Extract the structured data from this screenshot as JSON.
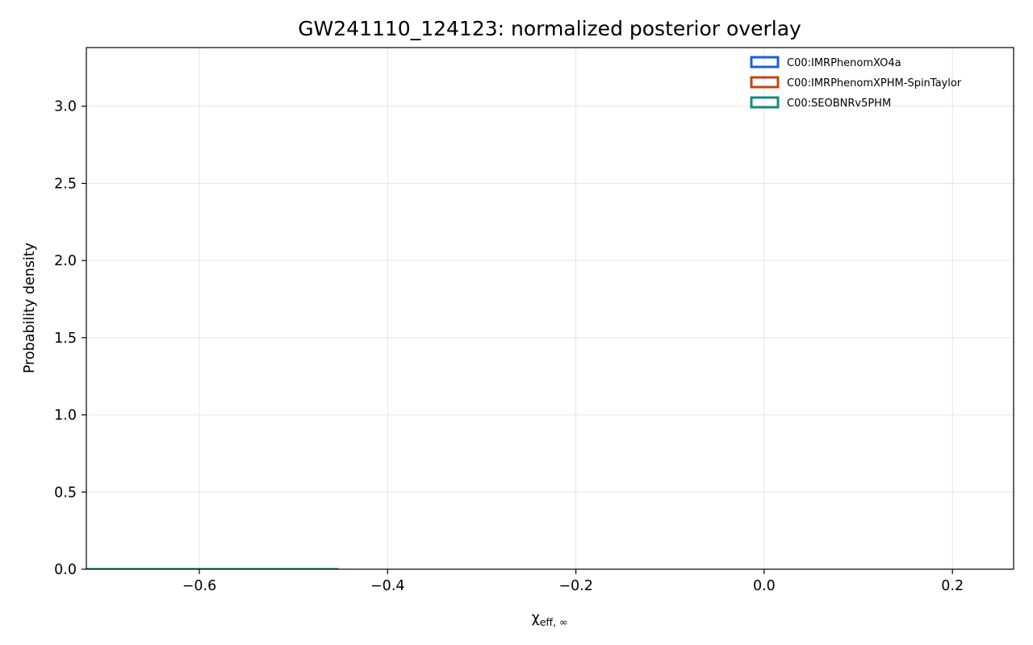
{
  "chart_data": {
    "type": "histogram",
    "title": "GW241110_124123: normalized posterior overlay",
    "xlabel_symbol": "χ",
    "xlabel_sub": "eff, ∞",
    "ylabel": "Probability density",
    "xlim": [
      -0.72,
      0.265
    ],
    "ylim": [
      0.0,
      3.38
    ],
    "xticks": [
      -0.6,
      -0.4,
      -0.2,
      0.0,
      0.2
    ],
    "xtick_labels": [
      "−0.6",
      "−0.4",
      "−0.2",
      "0.0",
      "0.2"
    ],
    "yticks": [
      0.0,
      0.5,
      1.0,
      1.5,
      2.0,
      2.5,
      3.0
    ],
    "ytick_labels": [
      "0.0",
      "0.5",
      "1.0",
      "1.5",
      "2.0",
      "2.5",
      "3.0"
    ],
    "grid": true,
    "legend_position": "top-right",
    "bin_start": -0.725,
    "bin_width": 0.0248,
    "series": [
      {
        "name": "C00:IMRPhenomXO4a",
        "color": "#1a5fe0",
        "values": [
          0.0,
          0.0,
          0.0,
          0.0,
          0.0,
          0.0,
          0.0,
          0.0,
          0.0,
          0.0,
          0.0
        ]
      },
      {
        "name": "C00:IMRPhenomXPHM-SpinTaylor",
        "color": "#c0451a",
        "values": [
          0.0,
          0.0,
          0.0,
          0.0,
          0.0,
          0.0,
          0.0,
          0.0,
          0.0,
          0.0,
          0.0
        ]
      },
      {
        "name": "C00:SEOBNRv5PHM",
        "color": "#138a7e",
        "values": [
          0.0,
          0.0,
          0.0,
          0.0,
          0.0,
          0.0,
          0.0,
          0.0,
          0.0,
          0.0,
          0.0
        ]
      }
    ]
  }
}
